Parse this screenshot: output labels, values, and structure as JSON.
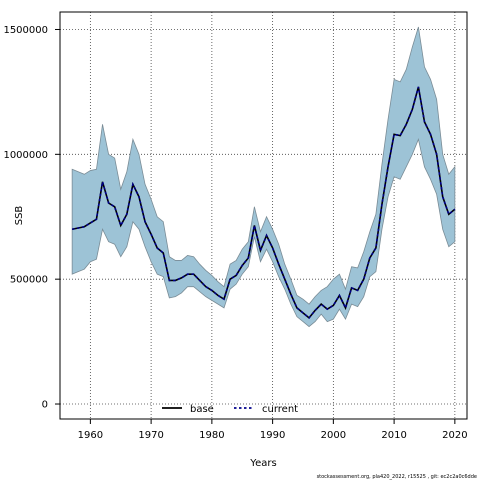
{
  "chart_data": {
    "type": "line",
    "xlabel": "Years",
    "ylabel": "SSB",
    "xlim": [
      1955,
      2022
    ],
    "ylim": [
      -60000,
      1570000
    ],
    "x_ticks": [
      1960,
      1970,
      1980,
      1990,
      2000,
      2010,
      2020
    ],
    "y_ticks": [
      0,
      500000,
      1000000,
      1500000
    ],
    "y_tick_labels": [
      "0",
      "500000",
      "1000000",
      "1500000"
    ],
    "grid": true,
    "legend_placement": "bottom-center",
    "colors": {
      "band_fill": "#9dc3d6",
      "band_edge": "#7a8c96",
      "base": "#000000",
      "current": "#00008b"
    },
    "years": [
      1957,
      1958,
      1959,
      1960,
      1961,
      1962,
      1963,
      1964,
      1965,
      1966,
      1967,
      1968,
      1969,
      1970,
      1971,
      1972,
      1973,
      1974,
      1975,
      1976,
      1977,
      1978,
      1979,
      1980,
      1981,
      1982,
      1983,
      1984,
      1985,
      1986,
      1987,
      1988,
      1989,
      1990,
      1991,
      1992,
      1993,
      1994,
      1995,
      1996,
      1997,
      1998,
      1999,
      2000,
      2001,
      2002,
      2003,
      2004,
      2005,
      2006,
      2007,
      2008,
      2009,
      2010,
      2011,
      2012,
      2013,
      2014,
      2015,
      2016,
      2017,
      2018,
      2019,
      2020
    ],
    "upper": [
      940000,
      930000,
      920000,
      935000,
      940000,
      1120000,
      1000000,
      985000,
      860000,
      930000,
      1060000,
      1000000,
      880000,
      820000,
      750000,
      730000,
      590000,
      575000,
      575000,
      595000,
      590000,
      560000,
      535000,
      515000,
      490000,
      470000,
      560000,
      575000,
      620000,
      650000,
      790000,
      690000,
      750000,
      700000,
      640000,
      560000,
      500000,
      435000,
      420000,
      400000,
      430000,
      455000,
      470000,
      500000,
      520000,
      460000,
      550000,
      545000,
      610000,
      690000,
      760000,
      960000,
      1140000,
      1300000,
      1290000,
      1340000,
      1430000,
      1510000,
      1350000,
      1300000,
      1220000,
      1000000,
      920000,
      950000
    ],
    "lower": [
      520000,
      530000,
      540000,
      570000,
      580000,
      700000,
      650000,
      640000,
      590000,
      630000,
      730000,
      700000,
      630000,
      570000,
      520000,
      510000,
      425000,
      430000,
      445000,
      470000,
      470000,
      450000,
      430000,
      415000,
      400000,
      385000,
      460000,
      480000,
      520000,
      550000,
      670000,
      570000,
      620000,
      570000,
      510000,
      460000,
      400000,
      350000,
      330000,
      310000,
      330000,
      360000,
      330000,
      340000,
      380000,
      340000,
      400000,
      390000,
      430000,
      510000,
      530000,
      700000,
      830000,
      910000,
      900000,
      950000,
      1000000,
      1060000,
      950000,
      900000,
      840000,
      700000,
      630000,
      650000
    ],
    "series": [
      {
        "name": "base",
        "values": [
          700000,
          705000,
          710000,
          725000,
          740000,
          890000,
          805000,
          790000,
          715000,
          760000,
          880000,
          830000,
          730000,
          680000,
          625000,
          605000,
          495000,
          495000,
          505000,
          520000,
          520000,
          495000,
          470000,
          455000,
          435000,
          420000,
          500000,
          515000,
          555000,
          585000,
          715000,
          615000,
          675000,
          625000,
          560000,
          500000,
          440000,
          385000,
          365000,
          345000,
          375000,
          400000,
          380000,
          395000,
          435000,
          385000,
          465000,
          455000,
          500000,
          585000,
          625000,
          800000,
          950000,
          1080000,
          1075000,
          1120000,
          1180000,
          1270000,
          1130000,
          1080000,
          1000000,
          830000,
          760000,
          780000
        ]
      },
      {
        "name": "current",
        "values": [
          700000,
          705000,
          710000,
          725000,
          740000,
          890000,
          805000,
          790000,
          715000,
          760000,
          880000,
          830000,
          730000,
          680000,
          625000,
          605000,
          495000,
          495000,
          505000,
          520000,
          520000,
          495000,
          470000,
          455000,
          435000,
          420000,
          500000,
          515000,
          555000,
          585000,
          715000,
          615000,
          675000,
          625000,
          560000,
          500000,
          440000,
          385000,
          365000,
          345000,
          375000,
          400000,
          380000,
          395000,
          435000,
          385000,
          465000,
          455000,
          500000,
          585000,
          625000,
          800000,
          950000,
          1080000,
          1075000,
          1120000,
          1180000,
          1270000,
          1130000,
          1080000,
          1000000,
          830000,
          760000,
          780000
        ]
      }
    ]
  },
  "footer": "stockassessment.org, pla420_2022, r15525 , git: ec2c2a0c6dde"
}
